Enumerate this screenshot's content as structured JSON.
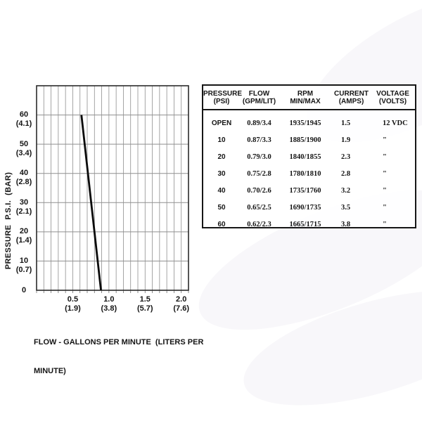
{
  "page": {
    "background": "#ffffff",
    "watermark_color": "rgba(196,190,210,0.12)"
  },
  "chart_data": [
    {
      "type": "line",
      "name": "pump-performance-curve",
      "title": "",
      "ylabel": "PRESSURE  P.S.I.  (BAR)",
      "xlabel": "FLOW - GALLONS PER MINUTE (LITERS PER MINUTE)",
      "xlabel_lines": [
        "FLOW - GALLONS PER MINUTE  (LITERS PER",
        "MINUTE)"
      ],
      "xlim": [
        0,
        2.1
      ],
      "ylim": [
        0,
        70
      ],
      "grid": "on",
      "x_minor_gridline_step": 0.1,
      "y_gridline_step": 10,
      "gridline_color": "#8f8f8f",
      "border_color": "#2b2b2b",
      "x_ticks": [
        {
          "label": "0.5",
          "sub": "(1.9)",
          "value": 0.5
        },
        {
          "label": "1.0",
          "sub": "(3.8)",
          "value": 1.0
        },
        {
          "label": "1.5",
          "sub": "(5.7)",
          "value": 1.5
        },
        {
          "label": "2.0",
          "sub": "(7.6)",
          "value": 2.0
        }
      ],
      "y_ticks": [
        {
          "label": "60",
          "sub": "(4.1)",
          "value": 60
        },
        {
          "label": "50",
          "sub": "(3.4)",
          "value": 50
        },
        {
          "label": "40",
          "sub": "(2.8)",
          "value": 40
        },
        {
          "label": "30",
          "sub": "(2.1)",
          "value": 30
        },
        {
          "label": "20",
          "sub": "(1.4)",
          "value": 20
        },
        {
          "label": "10",
          "sub": "(0.7)",
          "value": 10
        },
        {
          "label": "0",
          "sub": "",
          "value": 0
        }
      ],
      "series": [
        {
          "name": "pressure-vs-flow",
          "color": "#0b0b0b",
          "points": [
            {
              "x": 0.89,
              "y": 0
            },
            {
              "x": 0.62,
              "y": 60
            }
          ]
        }
      ]
    },
    {
      "type": "table",
      "name": "performance-spec-table",
      "columns": [
        {
          "line1": "PRESSURE",
          "line2": "(PSI)"
        },
        {
          "line1": "FLOW",
          "line2": "(GPM/LIT)"
        },
        {
          "line1": "RPM",
          "line2": "MIN/MAX"
        },
        {
          "line1": "CURRENT",
          "line2": "(AMPS)"
        },
        {
          "line1": "VOLTAGE",
          "line2": "(VOLTS)"
        }
      ],
      "rows": [
        [
          "OPEN",
          "0.89/3.4",
          "1935/1945",
          "1.5",
          "12 VDC"
        ],
        [
          "10",
          "0.87/3.3",
          "1885/1900",
          "1.9",
          "\""
        ],
        [
          "20",
          "0.79/3.0",
          "1840/1855",
          "2.3",
          "\""
        ],
        [
          "30",
          "0.75/2.8",
          "1780/1810",
          "2.8",
          "\""
        ],
        [
          "40",
          "0.70/2.6",
          "1735/1760",
          "3.2",
          "\""
        ],
        [
          "50",
          "0.65/2.5",
          "1690/1735",
          "3.5",
          "\""
        ],
        [
          "60",
          "0.62/2.3",
          "1665/1715",
          "3.8",
          "\""
        ]
      ]
    }
  ]
}
